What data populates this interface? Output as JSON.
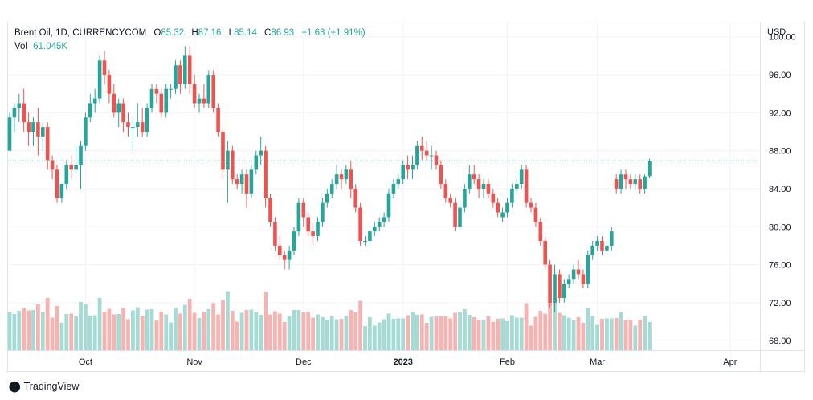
{
  "legend": {
    "symbol": "Brent Oil, 1D, CURRENCYCOM",
    "open_label": "O",
    "open": "85.32",
    "high_label": "H",
    "high": "87.16",
    "low_label": "L",
    "low": "85.14",
    "close_label": "C",
    "close": "86.93",
    "change": "+1.63 (+1.91%)",
    "vol_label": "Vol",
    "vol": "61.045K"
  },
  "currency": "USD",
  "brand": "TradingView",
  "colors": {
    "up": "#26a69a",
    "down": "#ef5350",
    "vol_up": "#a5dbd4",
    "vol_down": "#f7b3b1",
    "last_price_line": "#26a69a",
    "grid": "#f0f3fa",
    "axis_text": "#131722"
  },
  "chart_data": {
    "type": "candlestick",
    "title": "Brent Oil, 1D, CURRENCYCOM",
    "ylabel": "USD",
    "ylim": [
      67,
      101.5
    ],
    "y_ticks": [
      "68.00",
      "72.00",
      "76.00",
      "80.00",
      "84.00",
      "88.00",
      "92.00",
      "96.00",
      "100.00"
    ],
    "x_tick_labels": [
      {
        "label": "Oct",
        "index": 16
      },
      {
        "label": "Nov",
        "index": 39
      },
      {
        "label": "Dec",
        "index": 62
      },
      {
        "label": "2023",
        "index": 83
      },
      {
        "label": "Feb",
        "index": 105
      },
      {
        "label": "Mar",
        "index": 124
      },
      {
        "label": "Apr",
        "index": 149
      }
    ],
    "last_price": 86.93,
    "gap_after_index": 145,
    "series": [
      {
        "name": "Brent Oil",
        "ohlc": [
          [
            88,
            92,
            88,
            91.5
          ],
          [
            91.5,
            93,
            90,
            92.5
          ],
          [
            92.5,
            94,
            91,
            93
          ],
          [
            93,
            94.5,
            90,
            91
          ],
          [
            91,
            92,
            88.5,
            90
          ],
          [
            90,
            91.5,
            88.5,
            91
          ],
          [
            91,
            92.5,
            87.5,
            89.5
          ],
          [
            89.5,
            91,
            88,
            90.5
          ],
          [
            90.5,
            91,
            86,
            87
          ],
          [
            87,
            87.5,
            85,
            86
          ],
          [
            86,
            86.5,
            82.5,
            83
          ],
          [
            83,
            84.5,
            82.5,
            84.5
          ],
          [
            84.5,
            87,
            84,
            86.5
          ],
          [
            86.5,
            87.5,
            85,
            86
          ],
          [
            86,
            88.5,
            85.5,
            86.5
          ],
          [
            86.5,
            89,
            84,
            88.5
          ],
          [
            88.5,
            92,
            88,
            91.5
          ],
          [
            91.5,
            94,
            91,
            93
          ],
          [
            93,
            94.5,
            92,
            93.5
          ],
          [
            93.5,
            98,
            93,
            97.5
          ],
          [
            97.5,
            98.5,
            95,
            96
          ],
          [
            96,
            96.5,
            93,
            94
          ],
          [
            94,
            95,
            91.5,
            92
          ],
          [
            92,
            93.5,
            90.5,
            93
          ],
          [
            93,
            93.5,
            90,
            91
          ],
          [
            91,
            92,
            89.5,
            90.5
          ],
          [
            90.5,
            91.5,
            88,
            90.5
          ],
          [
            90.5,
            93,
            89.5,
            91
          ],
          [
            91,
            92.5,
            89.5,
            90
          ],
          [
            90,
            93,
            89.5,
            92.5
          ],
          [
            92.5,
            95,
            92,
            94.5
          ],
          [
            94.5,
            95,
            93,
            94
          ],
          [
            94,
            94.5,
            91.5,
            92
          ],
          [
            92,
            95,
            91.5,
            94.5
          ],
          [
            94.5,
            95,
            93.5,
            94.5
          ],
          [
            94.5,
            97.5,
            94,
            97
          ],
          [
            97,
            97.5,
            94,
            95
          ],
          [
            95,
            99,
            94.5,
            98
          ],
          [
            98,
            99,
            94,
            95
          ],
          [
            95,
            96,
            92.5,
            93
          ],
          [
            93,
            94,
            92,
            93.5
          ],
          [
            93.5,
            95,
            92.5,
            93
          ],
          [
            93,
            96.5,
            92.5,
            96
          ],
          [
            96,
            96.5,
            92,
            92.5
          ],
          [
            92.5,
            93,
            89.5,
            90
          ],
          [
            90,
            90.5,
            85,
            86
          ],
          [
            86,
            89,
            82.5,
            88
          ],
          [
            88,
            88.5,
            84.5,
            85
          ],
          [
            85,
            85.5,
            84,
            84.5
          ],
          [
            84.5,
            86,
            83.5,
            85.5
          ],
          [
            85.5,
            86,
            82,
            83.5
          ],
          [
            83.5,
            86.5,
            83,
            86
          ],
          [
            86,
            88,
            85.5,
            87.5
          ],
          [
            87.5,
            89.5,
            86.5,
            88
          ],
          [
            88,
            88.5,
            82,
            83
          ],
          [
            83,
            83.5,
            80,
            80.5
          ],
          [
            80.5,
            81,
            77.5,
            78
          ],
          [
            78,
            79,
            76.5,
            77
          ],
          [
            77,
            77.5,
            75.5,
            76.5
          ],
          [
            76.5,
            78,
            75.5,
            77.5
          ],
          [
            77.5,
            80,
            77,
            79.5
          ],
          [
            79.5,
            83,
            79,
            82.5
          ],
          [
            82.5,
            83,
            80,
            81
          ],
          [
            81,
            81.5,
            79,
            79.5
          ],
          [
            79.5,
            80.5,
            78,
            79
          ],
          [
            79,
            81,
            78.5,
            80.5
          ],
          [
            80.5,
            83,
            80,
            82.5
          ],
          [
            82.5,
            84,
            82,
            83.5
          ],
          [
            83.5,
            85,
            83,
            84.5
          ],
          [
            84.5,
            86.5,
            84,
            85.5
          ],
          [
            85.5,
            86,
            84,
            85
          ],
          [
            85,
            86.5,
            84.5,
            86
          ],
          [
            86,
            87,
            83,
            84
          ],
          [
            84,
            84.5,
            81.5,
            82
          ],
          [
            82,
            82.5,
            78,
            78.5
          ],
          [
            78.5,
            79,
            78,
            78.5
          ],
          [
            78.5,
            80,
            78,
            79.5
          ],
          [
            79.5,
            80.5,
            79,
            80
          ],
          [
            80,
            81,
            79.5,
            80.5
          ],
          [
            80.5,
            81.5,
            80,
            81
          ],
          [
            81,
            84,
            80.5,
            83.5
          ],
          [
            83.5,
            85,
            83,
            84.5
          ],
          [
            84.5,
            85.5,
            84,
            85
          ],
          [
            85,
            87,
            84.5,
            86.5
          ],
          [
            86.5,
            87.5,
            85,
            86
          ],
          [
            86,
            87.5,
            85,
            86.5
          ],
          [
            86.5,
            89,
            86,
            88.5
          ],
          [
            88.5,
            89.5,
            87,
            88
          ],
          [
            88,
            89,
            87,
            87.5
          ],
          [
            87.5,
            88.5,
            86,
            87.5
          ],
          [
            87.5,
            88,
            86,
            86.5
          ],
          [
            86.5,
            87,
            84,
            84.5
          ],
          [
            84.5,
            85,
            82.5,
            83
          ],
          [
            83,
            83.5,
            82,
            82.5
          ],
          [
            82.5,
            83,
            79.5,
            80
          ],
          [
            80,
            82.5,
            79.5,
            82
          ],
          [
            82,
            84.5,
            81.5,
            84
          ],
          [
            84,
            86.5,
            83.5,
            85.5
          ],
          [
            85.5,
            86.5,
            84.5,
            85
          ],
          [
            85,
            85.5,
            83,
            84
          ],
          [
            84,
            85,
            83,
            84.5
          ],
          [
            84.5,
            85,
            83,
            83.5
          ],
          [
            83.5,
            84,
            82,
            82.5
          ],
          [
            82.5,
            83,
            81,
            81.5
          ],
          [
            81,
            82,
            80.5,
            81.5
          ],
          [
            81.5,
            83,
            81,
            82.5
          ],
          [
            82.5,
            84.5,
            82,
            84
          ],
          [
            84,
            85,
            83.5,
            84.5
          ],
          [
            84.5,
            86.5,
            84,
            86
          ],
          [
            86,
            86.5,
            82,
            82.5
          ],
          [
            82.5,
            83,
            81.5,
            82
          ],
          [
            82,
            82.5,
            80,
            80.5
          ],
          [
            80.5,
            81,
            78,
            78.5
          ],
          [
            78.5,
            79,
            75.5,
            76
          ],
          [
            76,
            76.5,
            71.5,
            72
          ],
          [
            72,
            76,
            71,
            75
          ],
          [
            75,
            75.5,
            72,
            72.5
          ],
          [
            72.5,
            74.5,
            72,
            74
          ],
          [
            74,
            75,
            73.5,
            74.5
          ],
          [
            74.5,
            76,
            74,
            75.5
          ],
          [
            75.5,
            76.5,
            74.5,
            75
          ],
          [
            75,
            75.5,
            73.5,
            74
          ],
          [
            74,
            77.5,
            73.5,
            77
          ],
          [
            77,
            78.5,
            76.5,
            78
          ],
          [
            78,
            79,
            77.5,
            78.5
          ],
          [
            78.5,
            79,
            77,
            77.5
          ],
          [
            77.5,
            78.5,
            77,
            78
          ],
          [
            78,
            80,
            77.5,
            79.5
          ],
          [
            85,
            85.5,
            83.5,
            84
          ],
          [
            84,
            86,
            83.5,
            85.5
          ],
          [
            85.5,
            86,
            84,
            85
          ],
          [
            85,
            85.5,
            84,
            84.5
          ],
          [
            84.5,
            85.5,
            84,
            85
          ],
          [
            85,
            85.5,
            83.5,
            84
          ],
          [
            84,
            85.5,
            83.5,
            85.3
          ],
          [
            85.32,
            87.16,
            85.14,
            86.93
          ]
        ]
      }
    ]
  }
}
